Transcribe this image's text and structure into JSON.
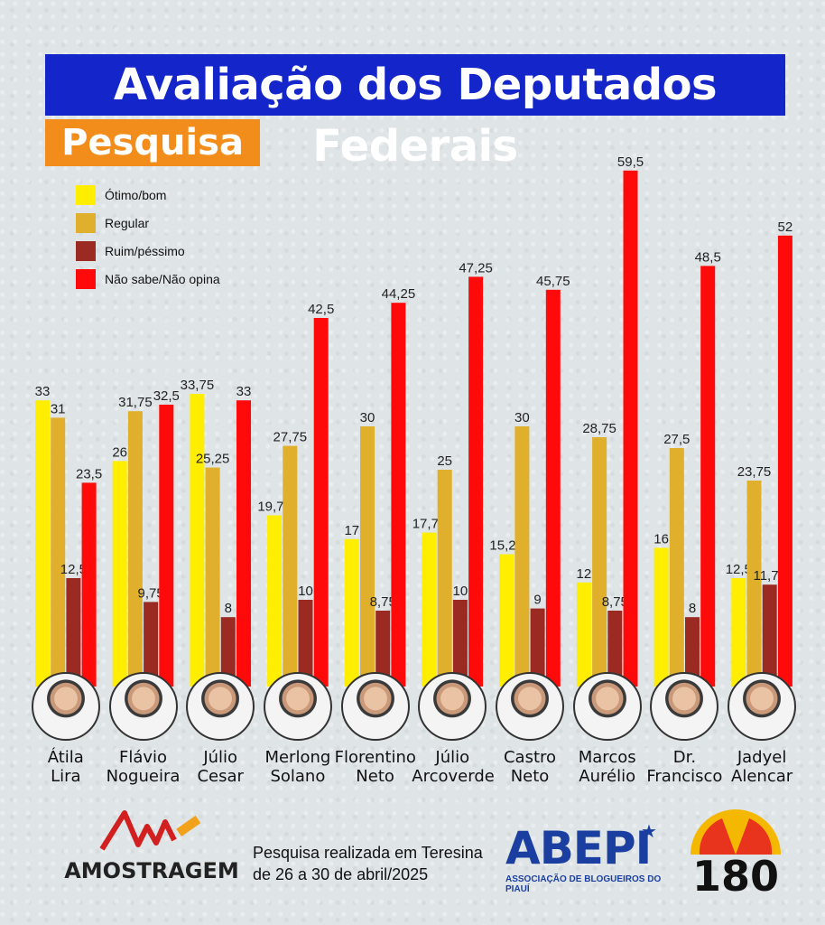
{
  "header": {
    "title": "Avaliação dos Deputados Federais",
    "subtitle": "Pesquisa"
  },
  "chart_data": {
    "type": "bar",
    "title": "Avaliação dos Deputados Federais",
    "subtitle": "Pesquisa",
    "categories": [
      "Átila Lira",
      "Flávio Nogueira",
      "Júlio Cesar",
      "Merlong Solano",
      "Florentino Neto",
      "Júlio Arcoverde",
      "Castro Neto",
      "Marcos Aurélio",
      "Dr. Francisco",
      "Jadyel Alencar"
    ],
    "category_lines": [
      [
        "Átila",
        "Lira"
      ],
      [
        "Flávio",
        "Nogueira"
      ],
      [
        "Júlio",
        "Cesar"
      ],
      [
        "Merlong",
        "Solano"
      ],
      [
        "Florentino",
        "Neto"
      ],
      [
        "Júlio",
        "Arcoverde"
      ],
      [
        "Castro",
        "Neto"
      ],
      [
        "Marcos",
        "Aurélio"
      ],
      [
        "Dr.",
        "Francisco"
      ],
      [
        "Jadyel",
        "Alencar"
      ]
    ],
    "series": [
      {
        "name": "Ótimo/bom",
        "color": "#ffee00",
        "values": [
          33,
          26,
          33.75,
          19.75,
          17,
          17.75,
          15.25,
          12,
          16,
          12.5
        ],
        "labels": [
          "33",
          "26",
          "33,75",
          "19,75",
          "17",
          "17,75",
          "15,25",
          "12",
          "16",
          "12,5"
        ]
      },
      {
        "name": "Regular",
        "color": "#e0b02c",
        "values": [
          31,
          31.75,
          25.25,
          27.75,
          30,
          25,
          30,
          28.75,
          27.5,
          23.75
        ],
        "labels": [
          "31",
          "31,75",
          "25,25",
          "27,75",
          "30",
          "25",
          "30",
          "28,75",
          "27,5",
          "23,75"
        ]
      },
      {
        "name": "Ruim/péssimo",
        "color": "#9b2a22",
        "values": [
          12.5,
          9.75,
          8,
          10,
          8.75,
          10,
          9,
          8.75,
          8,
          11.75
        ],
        "labels": [
          "12,5",
          "9,75",
          "8",
          "10",
          "8,75",
          "10",
          "9",
          "8,75",
          "8",
          "11,75"
        ]
      },
      {
        "name": "Não sabe/Não opina",
        "color": "#ff0a0a",
        "values": [
          23.5,
          32.5,
          33,
          42.5,
          44.25,
          47.25,
          45.75,
          59.5,
          48.5,
          52
        ],
        "labels": [
          "23,5",
          "32,5",
          "33",
          "42,5",
          "44,25",
          "47,25",
          "45,75",
          "59,5",
          "48,5",
          "52"
        ]
      }
    ],
    "legend_position": "top-left",
    "grid": false,
    "ylim": [
      0,
      65
    ]
  },
  "footer": {
    "pollster": "AMOSTRAGEM",
    "note_line1": "Pesquisa realizada em Teresina",
    "note_line2": "de 26 a 30 de abril/2025",
    "association_name": "ABEPI",
    "association_sub": "ASSOCIAÇÃO DE BLOGUEIROS DO PIAUÍ",
    "brand_number": "180"
  },
  "icons": {
    "amostragem_logo": "amostragem-logo-icon",
    "abepi_star": "star-icon",
    "brand_sun": "sun-logo-icon",
    "avatar": "avatar-photo-icon"
  }
}
